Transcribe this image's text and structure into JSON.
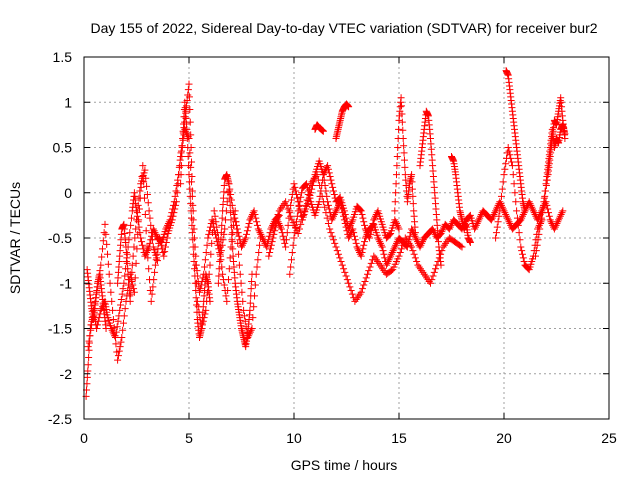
{
  "chart_data": {
    "type": "scatter",
    "title": "Day 155 of 2022, Sidereal Day-to-day VTEC variation (SDTVAR) for receiver bur2",
    "xlabel": "GPS time / hours",
    "ylabel": "SDTVAR / TECUs",
    "xlim": [
      0,
      25
    ],
    "ylim": [
      -2.5,
      1.5
    ],
    "xticks": [
      0,
      5,
      10,
      15,
      20,
      25
    ],
    "xtick_labels": [
      "0",
      "5",
      "10",
      "15",
      "20",
      "25"
    ],
    "yticks": [
      -2.5,
      -2,
      -1.5,
      -1,
      -0.5,
      0,
      0.5,
      1,
      1.5
    ],
    "ytick_labels": [
      "-2.5",
      "-2",
      "-1.5",
      "-1",
      "-0.5",
      "0",
      "0.5",
      "1",
      "1.5"
    ],
    "grid": true,
    "marker": "+",
    "series": [
      {
        "name": "SDTVAR",
        "color": "#ff0000",
        "tracks": [
          {
            "x": [
              0.1,
              0.2,
              0.3,
              0.45,
              0.6,
              0.8,
              1.0,
              1.1,
              1.3,
              1.5,
              1.7,
              1.9,
              2.1,
              2.3,
              2.4,
              2.5,
              2.7,
              2.9,
              3.1,
              3.3,
              3.5,
              3.7,
              3.9,
              4.1,
              4.3,
              4.5,
              4.7,
              4.85,
              5.0,
              5.1,
              5.2,
              5.35,
              5.5,
              5.7,
              5.9,
              6.1,
              6.3,
              6.5,
              6.7,
              6.9,
              7.1,
              7.3,
              7.5,
              7.7,
              7.9,
              8.1,
              8.3,
              8.5,
              8.7,
              8.9,
              9.1,
              9.3
            ],
            "y": [
              -2.25,
              -1.9,
              -1.5,
              -1.3,
              -1.5,
              -1.3,
              -1.2,
              -1.35,
              -1.5,
              -1.6,
              -1.3,
              -1.0,
              -0.6,
              -0.2,
              0.0,
              -0.2,
              -0.5,
              -0.7,
              -0.6,
              -0.4,
              -0.5,
              -0.55,
              -0.4,
              -0.3,
              -0.1,
              0.2,
              0.6,
              0.9,
              1.2,
              0.5,
              -0.3,
              -0.8,
              -1.1,
              -0.9,
              -0.5,
              -0.3,
              -0.5,
              -0.7,
              -0.4,
              0.1,
              -0.2,
              -0.4,
              -0.6,
              -0.5,
              -0.3,
              -0.2,
              -0.4,
              -0.5,
              -0.6,
              -0.4,
              -0.3,
              -0.25
            ]
          },
          {
            "x": [
              0.2,
              0.4,
              0.6,
              0.8,
              1.0,
              1.2,
              1.4,
              1.6,
              1.8,
              2.0,
              2.2,
              2.4,
              2.6,
              2.8,
              3.0,
              3.2,
              3.4,
              3.6,
              3.8,
              4.0,
              4.2,
              4.4,
              4.6,
              4.8,
              5.0,
              5.2,
              5.4,
              5.6,
              5.8,
              6.0,
              6.2,
              6.4,
              6.6,
              6.8,
              7.0,
              7.2,
              7.4,
              7.6,
              7.8,
              8.0,
              8.2,
              8.4
            ],
            "y": [
              -1.7,
              -1.4,
              -1.1,
              -0.8,
              -0.35,
              -0.9,
              -1.4,
              -1.85,
              -1.6,
              -1.2,
              -0.9,
              -1.1,
              -0.3,
              0.3,
              -0.6,
              -1.2,
              -0.8,
              -0.5,
              -0.7,
              -0.45,
              -0.3,
              -0.1,
              0.4,
              0.7,
              0.6,
              -0.2,
              -1.2,
              -1.5,
              -1.3,
              -0.8,
              -0.2,
              -0.5,
              -0.9,
              -1.2,
              -0.6,
              -0.2,
              -0.8,
              -1.3,
              -1.6,
              -1.5,
              -0.9,
              -0.5
            ]
          },
          {
            "x": [
              4.6,
              4.7,
              4.8,
              4.9,
              5.0,
              5.1,
              5.2,
              5.3,
              5.4,
              5.5,
              5.6,
              5.7,
              5.8,
              5.9,
              6.0
            ],
            "y": [
              0.1,
              0.6,
              1.0,
              0.7,
              0.2,
              -0.2,
              -0.6,
              -1.0,
              -1.4,
              -1.6,
              -1.5,
              -1.2,
              -0.9,
              -1.0,
              -1.2
            ]
          },
          {
            "x": [
              6.4,
              6.5,
              6.6,
              6.7,
              6.8,
              6.9,
              7.0,
              7.1,
              7.2,
              7.3,
              7.4,
              7.5,
              7.6,
              7.7,
              7.8,
              7.9,
              8.0
            ],
            "y": [
              -1.0,
              -0.6,
              -0.2,
              0.15,
              0.2,
              0.1,
              -0.3,
              -0.7,
              -1.0,
              -1.2,
              -1.35,
              -1.5,
              -1.6,
              -1.7,
              -1.55,
              -1.3,
              -0.9
            ]
          },
          {
            "x": [
              8.8,
              9.0,
              9.2,
              9.4,
              9.6,
              9.8,
              10.0,
              10.2,
              10.4,
              10.6,
              10.8,
              11.0,
              11.2,
              11.4,
              11.6,
              11.8,
              12.0,
              12.2,
              12.4,
              12.6,
              12.8,
              13.0,
              13.2,
              13.4,
              13.6,
              13.8,
              14.0,
              14.2,
              14.4,
              14.6,
              14.8,
              15.0,
              15.2,
              15.4,
              15.6,
              15.8,
              16.0,
              16.2,
              16.4,
              16.6,
              16.8,
              17.0,
              17.2,
              17.4,
              17.6,
              17.8,
              18.0,
              18.2,
              18.4,
              18.6,
              18.8,
              19.0,
              19.2,
              19.4,
              19.6,
              19.8,
              20.0,
              20.2,
              20.4,
              20.6,
              20.8,
              21.0,
              21.2,
              21.4,
              21.6,
              21.8,
              22.0,
              22.2,
              22.4,
              22.6,
              22.8
            ],
            "y": [
              -0.7,
              -0.5,
              -0.3,
              -0.4,
              -0.6,
              -0.2,
              0.1,
              -0.1,
              -0.3,
              -0.15,
              0.0,
              0.2,
              0.35,
              0.2,
              -0.1,
              -0.3,
              -0.2,
              -0.1,
              -0.3,
              -0.5,
              -0.4,
              -0.6,
              -0.7,
              -0.5,
              -0.4,
              -0.35,
              -0.5,
              -0.6,
              -0.8,
              -0.7,
              -0.6,
              -0.5,
              -0.55,
              -0.6,
              -0.4,
              -0.5,
              -0.6,
              -0.5,
              -0.45,
              -0.4,
              -0.5,
              -0.45,
              -0.35,
              -0.4,
              -0.3,
              -0.35,
              -0.4,
              -0.3,
              -0.25,
              -0.4,
              -0.3,
              -0.2,
              -0.25,
              -0.3,
              -0.2,
              -0.1,
              -0.2,
              -0.3,
              -0.4,
              -0.35,
              -0.3,
              -0.2,
              -0.1,
              -0.2,
              -0.3,
              -0.2,
              -0.1,
              -0.3,
              -0.4,
              -0.3,
              -0.2
            ]
          },
          {
            "x": [
              9.0,
              9.3,
              9.6,
              9.9,
              10.2,
              10.5,
              10.8,
              11.1,
              11.4,
              11.7,
              12.0,
              12.3,
              12.6,
              12.9,
              13.2,
              13.5,
              13.8,
              14.1,
              14.4,
              14.7,
              15.0,
              15.3,
              15.6,
              15.9,
              16.2,
              16.5,
              16.8,
              17.1,
              17.4,
              17.7,
              18.0
            ],
            "y": [
              -0.4,
              -0.2,
              -0.1,
              -0.3,
              -0.45,
              -0.2,
              0.1,
              0.2,
              -0.1,
              -0.4,
              -0.6,
              -0.8,
              -1.0,
              -1.2,
              -1.1,
              -0.9,
              -0.7,
              -0.8,
              -0.9,
              -0.85,
              -0.7,
              -0.5,
              -0.6,
              -0.8,
              -0.9,
              -1.0,
              -0.8,
              -0.6,
              -0.5,
              -0.55,
              -0.6
            ]
          },
          {
            "x": [
              9.8,
              10.0,
              10.2,
              10.4,
              10.6,
              10.8,
              11.0,
              11.2,
              11.4,
              11.6,
              11.8,
              12.0,
              12.2,
              12.4,
              12.6,
              12.8,
              13.0,
              13.2,
              13.4,
              13.6,
              13.8,
              14.0,
              14.2,
              14.4,
              14.6,
              14.8,
              15.0
            ],
            "y": [
              -0.9,
              -0.5,
              -0.2,
              0.05,
              0.1,
              -0.1,
              -0.25,
              -0.1,
              0.2,
              0.3,
              0.1,
              -0.1,
              -0.05,
              -0.2,
              -0.4,
              -0.3,
              -0.15,
              -0.2,
              -0.4,
              -0.5,
              -0.3,
              -0.2,
              -0.35,
              -0.5,
              -0.45,
              -0.3,
              -0.4
            ]
          },
          {
            "x": [
              11.0,
              11.1,
              11.2,
              11.3,
              11.4
            ],
            "y": [
              0.7,
              0.75,
              0.72,
              0.7,
              0.68
            ]
          },
          {
            "x": [
              12.0,
              12.1,
              12.2,
              12.3,
              12.4,
              12.5,
              12.6
            ],
            "y": [
              0.6,
              0.7,
              0.8,
              0.9,
              0.95,
              0.98,
              0.95
            ]
          },
          {
            "x": [
              14.8,
              14.9,
              15.0,
              15.1,
              15.2,
              15.3,
              15.4,
              15.5,
              15.6,
              15.7,
              15.8
            ],
            "y": [
              -0.2,
              0.3,
              0.8,
              1.05,
              0.6,
              0.2,
              -0.1,
              0.1,
              0.2,
              -0.2,
              -0.5
            ]
          },
          {
            "x": [
              16.0,
              16.1,
              16.2,
              16.3,
              16.4,
              16.5,
              16.6,
              16.7,
              16.8,
              16.9,
              17.0
            ],
            "y": [
              0.3,
              0.5,
              0.7,
              0.9,
              0.85,
              0.6,
              0.3,
              0.0,
              -0.3,
              -0.6,
              -0.8
            ]
          },
          {
            "x": [
              17.5,
              17.6,
              17.7,
              17.8,
              17.9,
              18.0,
              18.1,
              18.2,
              18.3,
              18.4
            ],
            "y": [
              0.4,
              0.35,
              0.2,
              0.0,
              -0.2,
              -0.3,
              -0.4,
              -0.35,
              -0.5,
              -0.55
            ]
          },
          {
            "x": [
              19.6,
              19.8,
              20.0,
              20.2,
              20.4,
              20.6,
              20.8,
              21.0,
              21.2,
              21.4,
              21.6,
              21.8
            ],
            "y": [
              -0.5,
              -0.2,
              0.2,
              0.5,
              0.3,
              -0.2,
              -0.6,
              -0.8,
              -0.85,
              -0.7,
              -0.4,
              -0.3
            ]
          },
          {
            "x": [
              20.1,
              20.2,
              20.3,
              20.4,
              20.5,
              20.6,
              20.7,
              20.8,
              20.9,
              21.0
            ],
            "y": [
              1.35,
              1.3,
              1.1,
              0.9,
              0.7,
              0.5,
              0.3,
              0.1,
              -0.1,
              -0.2
            ]
          },
          {
            "x": [
              21.5,
              21.7,
              21.9,
              22.1,
              22.2,
              22.3,
              22.4,
              22.5,
              22.6,
              22.7,
              22.8,
              22.9
            ],
            "y": [
              -0.7,
              -0.4,
              -0.1,
              0.2,
              0.4,
              0.6,
              0.8,
              0.75,
              0.9,
              1.05,
              0.8,
              0.6
            ]
          },
          {
            "x": [
              21.8,
              22.0,
              22.1,
              22.2,
              22.3,
              22.4,
              22.5,
              22.6,
              22.7,
              22.8,
              22.9
            ],
            "y": [
              -0.3,
              0.1,
              0.3,
              0.5,
              0.7,
              0.5,
              0.6,
              0.55,
              0.7,
              0.75,
              0.65
            ]
          },
          {
            "x": [
              0.15,
              0.25,
              0.35,
              0.45,
              0.55,
              0.65,
              0.75,
              0.85,
              0.95,
              1.05
            ],
            "y": [
              -0.85,
              -1.05,
              -1.25,
              -1.4,
              -1.2,
              -1.0,
              -0.9,
              -1.1,
              -1.3,
              -1.5
            ]
          },
          {
            "x": [
              1.6,
              1.7,
              1.8,
              1.9,
              2.0,
              2.1,
              2.2,
              2.3,
              2.5,
              2.7,
              2.9,
              3.1,
              3.3,
              3.5
            ],
            "y": [
              -1.0,
              -0.7,
              -0.4,
              -0.35,
              -0.6,
              -0.9,
              -1.2,
              -0.8,
              -0.3,
              0.1,
              0.25,
              -0.2,
              -0.6,
              -0.75
            ]
          }
        ]
      }
    ]
  }
}
